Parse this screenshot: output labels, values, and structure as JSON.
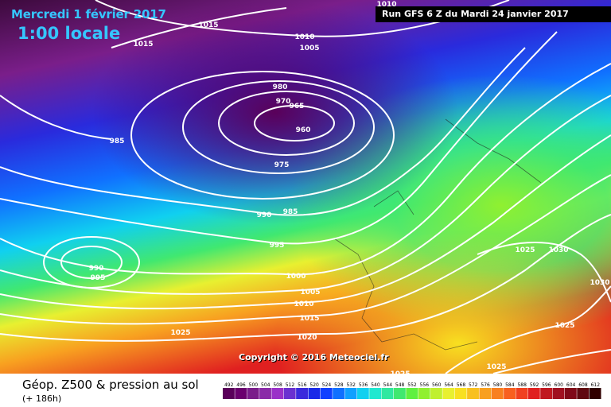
{
  "header": {
    "date_label": "Mercredi 1 février 2017",
    "time_label": "1:00 locale",
    "run_label": "Run GFS 6 Z du Mardi 24 janvier 2017"
  },
  "copyright": "Copyright © 2016 Meteociel.fr",
  "footer": {
    "caption": "Géop. Z500 & pression au sol",
    "caption_sub": "(+ 186h)"
  },
  "isobar_labels": [
    "1010",
    "1015",
    "1015",
    "1010",
    "1005",
    "985",
    "980",
    "970",
    "965",
    "960",
    "975",
    "990",
    "985",
    "995",
    "990",
    "995",
    "1000",
    "1005",
    "1010",
    "1015",
    "1020",
    "1025",
    "1025",
    "1025",
    "1030",
    "1030",
    "1025",
    "1025"
  ],
  "legend": {
    "values": [
      "492",
      "496",
      "500",
      "504",
      "508",
      "512",
      "516",
      "520",
      "524",
      "528",
      "532",
      "536",
      "540",
      "544",
      "548",
      "552",
      "556",
      "560",
      "564",
      "568",
      "572",
      "576",
      "580",
      "584",
      "588",
      "592",
      "596",
      "600",
      "604",
      "608",
      "612"
    ],
    "colors": [
      "#5a005a",
      "#6a006e",
      "#7a1e8a",
      "#8a2aa8",
      "#9a30c8",
      "#6a30d0",
      "#3a2adc",
      "#1a2ae8",
      "#1040ff",
      "#1070ff",
      "#10a0ff",
      "#10d0f0",
      "#20e8d0",
      "#30e8a0",
      "#40e870",
      "#60f040",
      "#90f030",
      "#c0f030",
      "#e8f030",
      "#f8e020",
      "#f8c020",
      "#f8a020",
      "#f88020",
      "#f86020",
      "#f04020",
      "#e02020",
      "#c01820",
      "#a01020",
      "#800818",
      "#600810",
      "#300000"
    ]
  },
  "colors": {
    "title_accent": "#35c6ff",
    "isobar": "#ffffff"
  }
}
